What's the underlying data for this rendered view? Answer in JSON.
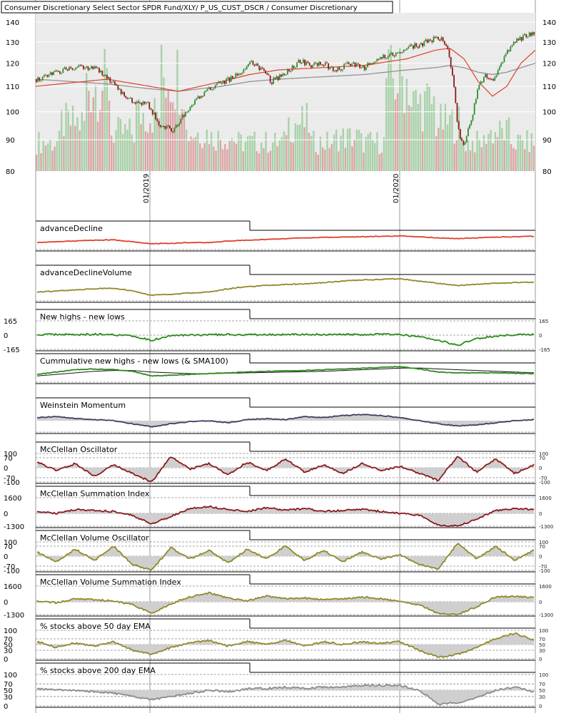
{
  "header_title": "Consumer Discretionary Select Sector SPDR Fund/XLY/ P_US_CUST_DSCR / Consumer Discretionary",
  "colors": {
    "up_candle": "#2e8b2e",
    "down_candle": "#8b1a1a",
    "volume_up": "#9ccc9c",
    "volume_down": "#d89a9a",
    "red_line": "#e0402a",
    "olive_line": "#8f8a2a",
    "green_line": "#2a8a1a",
    "navy_line": "#3a4060",
    "maroon_line": "#8a1a1a",
    "gray_line": "#8c8c8c",
    "sma_line": "#111111"
  },
  "chart_data": [
    {
      "type": "candlestick",
      "title": "Consumer Discretionary Select Sector SPDR Fund/XLY/ P_US_CUST_DSCR / Consumer Discretionary",
      "yticks": [
        "140",
        "130",
        "120",
        "110",
        "100",
        "90",
        "80"
      ],
      "ytick_values": [
        140,
        130,
        120,
        110,
        100,
        90,
        80
      ],
      "y_scale": "log",
      "x_labels": [
        "01/2019",
        "01/2020"
      ],
      "series": [
        {
          "name": "price",
          "x": [
            0,
            20,
            40,
            60,
            80,
            100,
            120,
            140,
            155,
            170,
            190,
            210,
            230,
            250,
            270,
            290,
            300,
            315,
            330,
            350,
            370,
            385,
            400,
            420,
            440,
            460,
            480,
            500,
            520,
            540,
            560,
            570,
            578,
            585,
            590,
            595,
            600,
            610,
            620,
            630,
            640,
            650,
            660,
            670,
            680,
            690,
            700
          ],
          "values": [
            113,
            115,
            117,
            118,
            118,
            114,
            107,
            103,
            104,
            96,
            93,
            100,
            106,
            110,
            113,
            116,
            121,
            117,
            112,
            116,
            121,
            119,
            120,
            117,
            120,
            118,
            123,
            124,
            127,
            129,
            132,
            131,
            125,
            110,
            96,
            90,
            88,
            98,
            110,
            115,
            112,
            118,
            125,
            130,
            132,
            134,
            135
          ]
        }
      ],
      "ma_red": {
        "x": [
          0,
          100,
          160,
          200,
          260,
          300,
          340,
          400,
          460,
          520,
          560,
          580,
          600,
          620,
          640,
          660,
          680,
          700
        ],
        "values": [
          110,
          113,
          110,
          108,
          112,
          115,
          117,
          118,
          119,
          122,
          126,
          127,
          122,
          112,
          106,
          110,
          120,
          126
        ]
      },
      "ma_gray": {
        "x": [
          0,
          100,
          160,
          200,
          260,
          300,
          340,
          400,
          460,
          520,
          560,
          580,
          600,
          620,
          640,
          660,
          680,
          700
        ],
        "values": [
          113,
          111,
          109,
          108,
          110,
          112,
          113,
          114,
          115,
          117,
          118,
          119,
          118,
          116,
          115,
          116,
          118,
          120
        ]
      },
      "volume_relative": [
        0.3,
        0.5,
        0.9,
        0.4,
        0.6,
        1.0,
        0.4,
        0.35,
        0.3,
        0.3,
        0.5,
        0.3,
        0.35,
        0.3,
        0.95,
        0.7,
        0.5,
        0.3,
        0.4,
        0.3
      ]
    },
    {
      "type": "line",
      "title": "advanceDecline",
      "values": [
        -0.2,
        -0.1,
        0,
        0.1,
        0.15,
        -0.1,
        -0.35,
        -0.3,
        -0.2,
        -0.2,
        0.0,
        0.1,
        0.2,
        0.3,
        0.4,
        0.45,
        0.5,
        0.55,
        0.6,
        0.65,
        0.55,
        0.4,
        0.3,
        0.4,
        0.5,
        0.55,
        0.6
      ]
    },
    {
      "type": "line",
      "title": "advanceDeclineVolume",
      "values": [
        -0.3,
        -0.2,
        -0.1,
        0,
        0.05,
        -0.2,
        -0.6,
        -0.5,
        -0.4,
        -0.3,
        0.0,
        0.2,
        0.3,
        0.4,
        0.45,
        0.55,
        0.7,
        0.8,
        0.85,
        0.9,
        0.7,
        0.5,
        0.3,
        0.4,
        0.5,
        0.55,
        0.6
      ]
    },
    {
      "type": "line",
      "title": "New highs - new lows",
      "yticks": [
        "165",
        "0",
        "-165"
      ],
      "ylim": [
        -165,
        165
      ],
      "values": [
        0,
        8,
        4,
        10,
        5,
        -10,
        -60,
        -5,
        0,
        4,
        8,
        2,
        4,
        8,
        10,
        5,
        8,
        4,
        10,
        8,
        -20,
        -60,
        -120,
        -40,
        -10,
        5,
        4
      ]
    },
    {
      "type": "line",
      "title": "Cummulative new highs - new lows (& SMA100)",
      "values": [
        -0.1,
        0.2,
        0.5,
        0.6,
        0.5,
        0.3,
        -0.3,
        -0.2,
        -0.1,
        0.0,
        0.1,
        0.2,
        0.3,
        0.35,
        0.4,
        0.5,
        0.6,
        0.7,
        0.8,
        0.9,
        0.6,
        0.2,
        0.1,
        0.1,
        0.1,
        0.05,
        0.0
      ],
      "sma": [
        -0.3,
        -0.1,
        0.1,
        0.3,
        0.4,
        0.4,
        0.2,
        0.1,
        0.0,
        0.0,
        0.05,
        0.1,
        0.15,
        0.2,
        0.25,
        0.3,
        0.4,
        0.5,
        0.6,
        0.7,
        0.72,
        0.6,
        0.5,
        0.4,
        0.3,
        0.2,
        0.1
      ]
    },
    {
      "type": "area",
      "title": "Weinstein Momentum",
      "values": [
        0.3,
        0.4,
        0.2,
        0.1,
        0.0,
        -0.3,
        -0.6,
        -0.3,
        -0.1,
        0.0,
        -0.2,
        0.1,
        0.2,
        0.1,
        0.4,
        0.3,
        0.5,
        0.6,
        0.5,
        0.3,
        0.0,
        -0.3,
        -0.5,
        -0.4,
        -0.2,
        0.0,
        0.1
      ]
    },
    {
      "type": "area",
      "title": "McClellan Oscillator",
      "yticks": [
        "100",
        "70",
        "0",
        "-70",
        "-100"
      ],
      "ylim": [
        -100,
        100
      ],
      "values": [
        40,
        -20,
        30,
        -60,
        20,
        -40,
        -100,
        80,
        -10,
        30,
        -50,
        40,
        -20,
        60,
        -30,
        20,
        -40,
        30,
        -20,
        10,
        -40,
        -90,
        80,
        -30,
        60,
        -40,
        20
      ]
    },
    {
      "type": "area",
      "title": "McClellan Summation Index",
      "yticks": [
        "1600",
        "0",
        "-1300"
      ],
      "ylim": [
        -1300,
        1600
      ],
      "values": [
        200,
        0,
        400,
        300,
        200,
        -200,
        -1100,
        -300,
        500,
        700,
        400,
        200,
        600,
        300,
        500,
        200,
        300,
        400,
        200,
        0,
        -200,
        -1200,
        -1300,
        -600,
        300,
        500,
        400
      ]
    },
    {
      "type": "area",
      "title": "McClellan Volume Oscillator",
      "yticks": [
        "100",
        "70",
        "0",
        "-70",
        "-100"
      ],
      "ylim": [
        -100,
        100
      ],
      "values": [
        30,
        -40,
        50,
        -30,
        70,
        -60,
        -100,
        60,
        -20,
        40,
        -50,
        50,
        -20,
        70,
        -30,
        40,
        -40,
        30,
        -20,
        10,
        -60,
        -90,
        90,
        -20,
        70,
        -30,
        40
      ]
    },
    {
      "type": "area",
      "title": "McClellan Volume Summation Index",
      "yticks": [
        "1600",
        "0",
        "-1300"
      ],
      "ylim": [
        -1300,
        1600
      ],
      "values": [
        100,
        -100,
        300,
        200,
        100,
        -300,
        -1200,
        -200,
        500,
        900,
        400,
        100,
        600,
        300,
        400,
        200,
        300,
        500,
        300,
        0,
        -300,
        -1200,
        -1300,
        -500,
        500,
        600,
        400
      ]
    },
    {
      "type": "area",
      "title": "% stocks above 50 day EMA",
      "yticks": [
        "100",
        "70",
        "50",
        "30",
        "0"
      ],
      "ylim": [
        0,
        100
      ],
      "baseline": 50,
      "values": [
        60,
        40,
        55,
        45,
        60,
        30,
        15,
        40,
        55,
        65,
        45,
        60,
        50,
        65,
        45,
        60,
        50,
        60,
        55,
        60,
        30,
        5,
        15,
        40,
        70,
        90,
        65
      ]
    },
    {
      "type": "area",
      "title": "% stocks above 200 day EMA",
      "yticks": [
        "100",
        "70",
        "50",
        "30",
        "0"
      ],
      "ylim": [
        0,
        100
      ],
      "baseline": 50,
      "values": [
        55,
        50,
        50,
        45,
        40,
        30,
        20,
        30,
        40,
        50,
        45,
        55,
        55,
        60,
        55,
        60,
        60,
        65,
        65,
        65,
        50,
        5,
        10,
        25,
        50,
        60,
        45
      ]
    }
  ]
}
